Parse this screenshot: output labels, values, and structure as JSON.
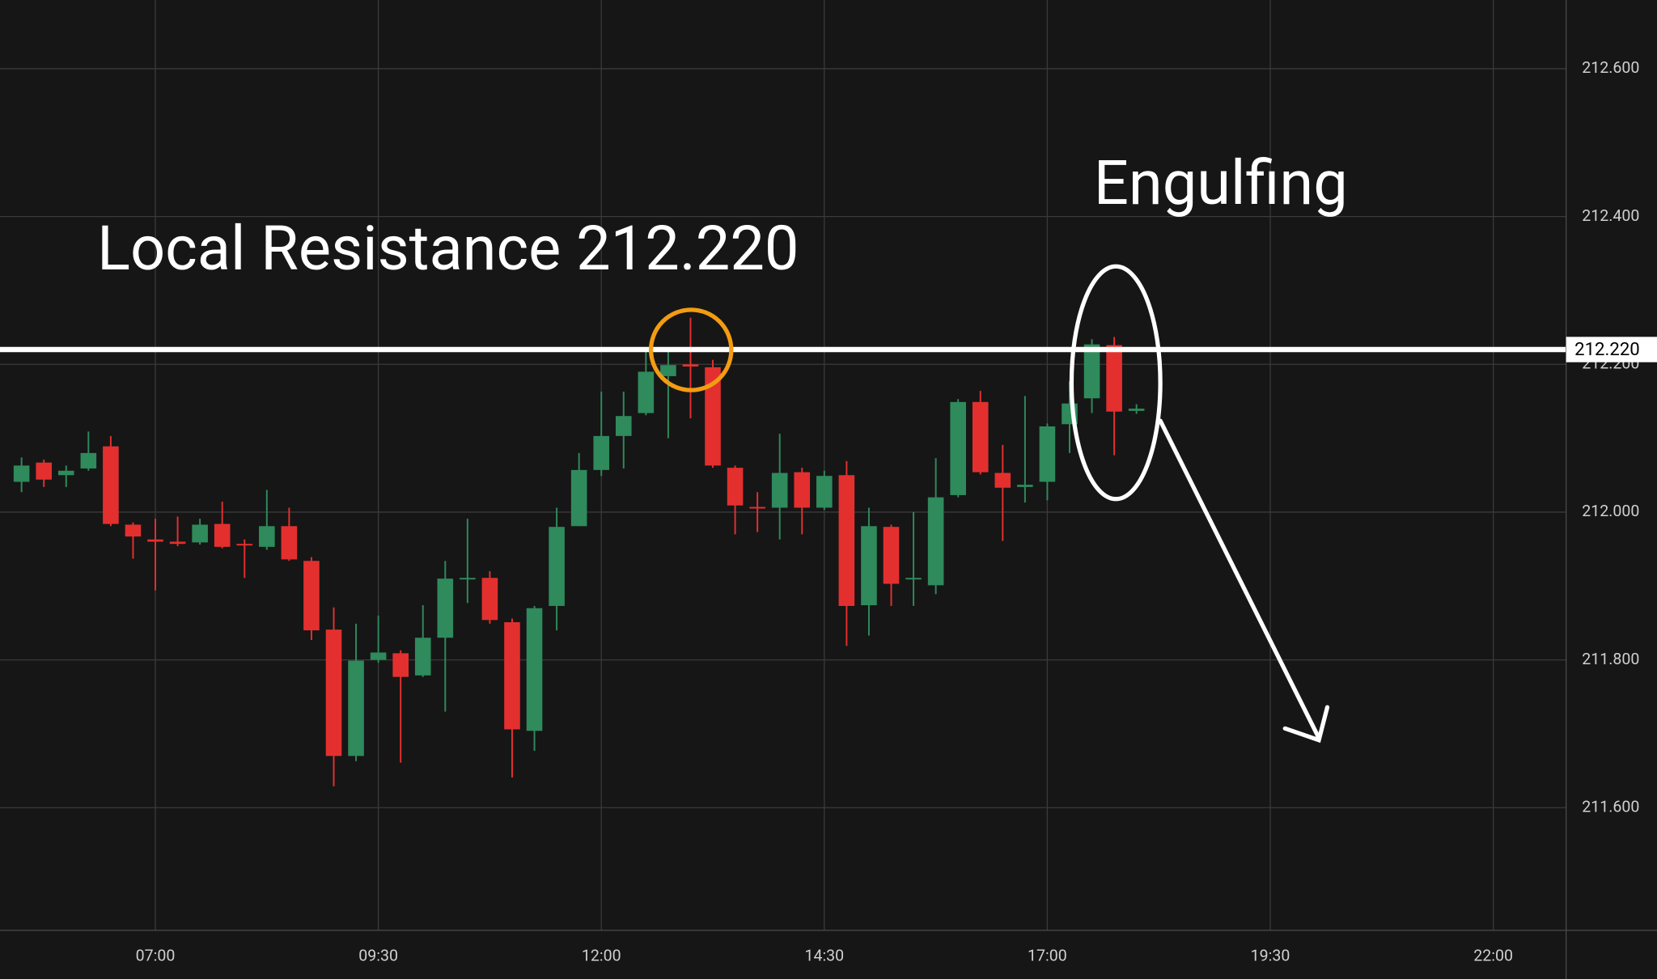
{
  "chart_data": {
    "type": "candlestick",
    "annotations": [
      "Local Resistance 212.220",
      "Engulfing"
    ],
    "x": [
      330,
      345,
      360,
      375,
      390,
      405,
      420,
      435,
      450,
      465,
      480,
      495,
      510,
      525,
      540,
      555,
      570,
      585,
      600,
      615,
      630,
      645,
      660,
      675,
      690,
      705,
      720,
      735,
      750,
      765,
      780,
      795,
      810,
      825,
      840,
      855,
      870,
      885,
      900,
      915,
      930,
      945,
      960,
      975,
      990,
      1005,
      1020,
      1035,
      1050,
      1065,
      1080
    ],
    "open": [
      212.041,
      212.067,
      212.05,
      212.059,
      212.089,
      211.983,
      211.963,
      211.96,
      211.959,
      211.984,
      211.957,
      211.953,
      211.981,
      211.934,
      211.841,
      211.67,
      211.8,
      211.809,
      211.779,
      211.83,
      211.909,
      211.911,
      211.851,
      211.704,
      211.873,
      211.981,
      212.057,
      212.103,
      212.134,
      212.184,
      212.2,
      212.196,
      212.06,
      212.007,
      212.006,
      212.054,
      212.006,
      212.05,
      211.874,
      211.98,
      211.91,
      211.901,
      212.023,
      212.149,
      212.053,
      212.034,
      212.041,
      212.119,
      212.154,
      212.226,
      212.137
    ],
    "high": [
      212.074,
      212.071,
      212.063,
      212.109,
      212.103,
      211.986,
      211.991,
      211.994,
      211.991,
      212.014,
      211.963,
      212.03,
      212.006,
      211.939,
      211.871,
      211.849,
      211.86,
      211.813,
      211.874,
      211.934,
      211.991,
      211.92,
      211.856,
      211.873,
      212.006,
      212.08,
      212.163,
      212.163,
      212.22,
      212.22,
      212.263,
      212.206,
      212.063,
      212.027,
      212.106,
      212.06,
      212.056,
      212.069,
      212.006,
      211.983,
      212.0,
      212.073,
      212.153,
      212.164,
      212.091,
      212.157,
      212.12,
      212.177,
      212.234,
      212.237,
      212.146
    ],
    "low": [
      212.027,
      212.034,
      212.034,
      212.056,
      211.981,
      211.937,
      211.894,
      211.954,
      211.956,
      211.951,
      211.911,
      211.949,
      211.934,
      211.827,
      211.629,
      211.663,
      211.796,
      211.661,
      211.777,
      211.73,
      211.877,
      211.849,
      211.641,
      211.677,
      211.84,
      211.981,
      212.049,
      212.059,
      212.131,
      212.1,
      212.127,
      212.06,
      211.97,
      211.973,
      211.963,
      211.97,
      212.003,
      211.819,
      211.833,
      211.873,
      211.873,
      211.889,
      212.02,
      212.051,
      211.961,
      212.013,
      212.016,
      212.08,
      212.134,
      212.077,
      212.133
    ],
    "close": [
      212.063,
      212.044,
      212.056,
      212.08,
      211.984,
      211.967,
      211.96,
      211.957,
      211.983,
      211.953,
      211.956,
      211.981,
      211.936,
      211.84,
      211.67,
      211.799,
      211.81,
      211.777,
      211.83,
      211.91,
      211.911,
      211.854,
      211.706,
      211.87,
      211.98,
      212.057,
      212.103,
      212.13,
      212.19,
      212.199,
      212.197,
      212.063,
      212.009,
      212.006,
      212.053,
      212.006,
      212.049,
      211.873,
      211.981,
      211.903,
      211.911,
      212.02,
      212.149,
      212.054,
      212.033,
      212.037,
      212.116,
      212.147,
      212.227,
      212.136,
      212.14
    ],
    "up_color": "#2f8a5c",
    "down_color": "#e3302f",
    "xlim": [
      315.5,
      1369
    ],
    "ylim": [
      211.434,
      212.693
    ],
    "xticks": [
      {
        "value": 420,
        "label": "07:00"
      },
      {
        "value": 570,
        "label": "09:30"
      },
      {
        "value": 720,
        "label": "12:00"
      },
      {
        "value": 870,
        "label": "14:30"
      },
      {
        "value": 1020,
        "label": "17:00"
      },
      {
        "value": 1170,
        "label": "19:30"
      },
      {
        "value": 1320,
        "label": "22:00"
      }
    ],
    "yticks": [
      {
        "value": 211.6,
        "label": "211.600"
      },
      {
        "value": 211.8,
        "label": "211.800"
      },
      {
        "value": 212.0,
        "label": "212.000"
      },
      {
        "value": 212.2,
        "label": "212.200"
      },
      {
        "value": 212.4,
        "label": "212.400"
      },
      {
        "value": 212.6,
        "label": "212.600"
      }
    ],
    "hline": {
      "value": 212.22,
      "label": "212.220",
      "color": "#ffffff"
    },
    "grid": true
  }
}
